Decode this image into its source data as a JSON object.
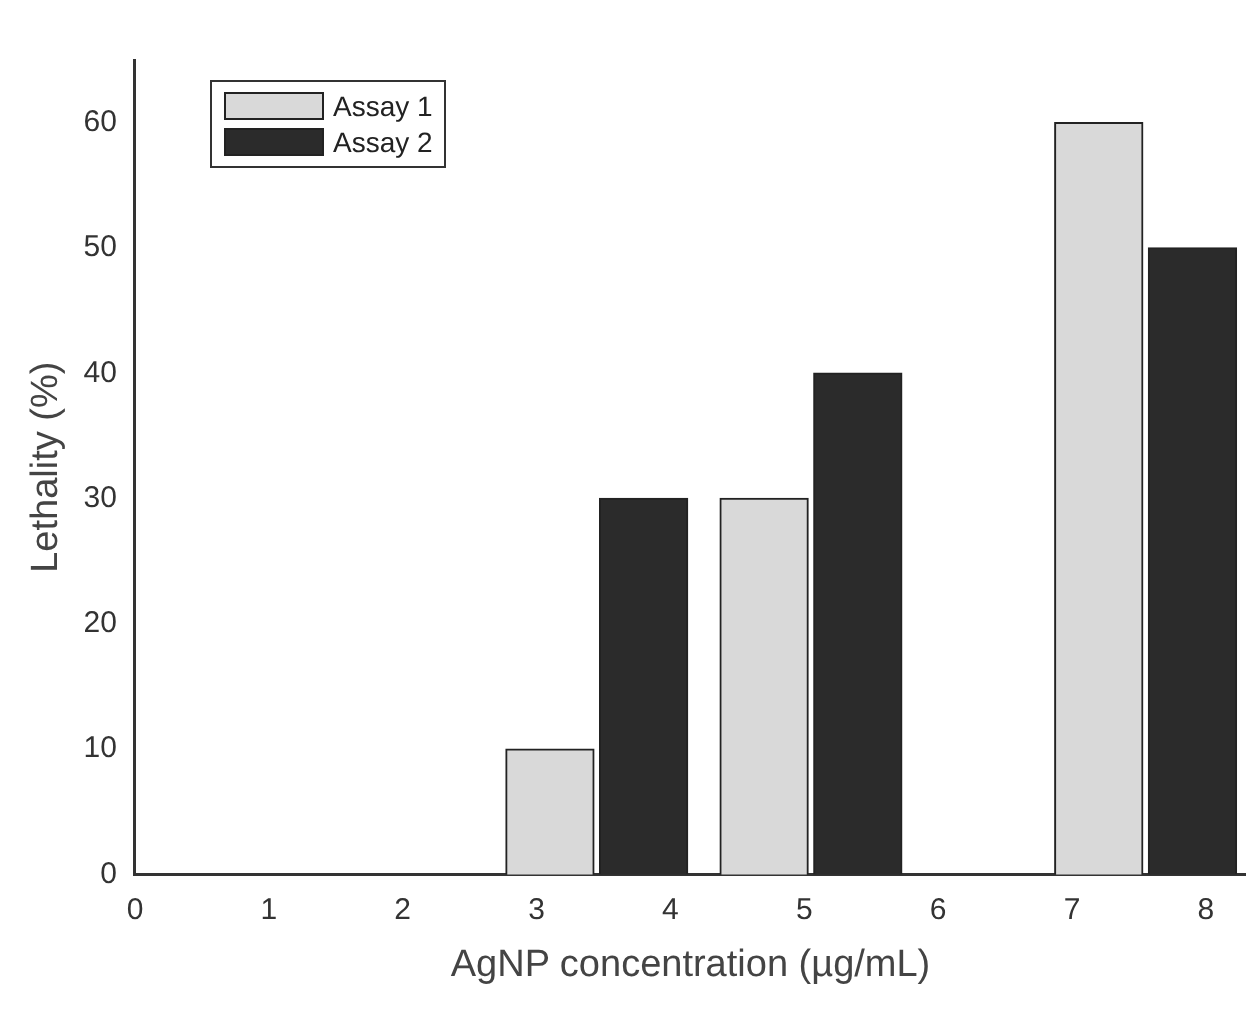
{
  "chart_data": {
    "type": "bar",
    "xlabel": "AgNP concentration (µg/mL)",
    "ylabel": "Lethality (%)",
    "series": [
      {
        "name": "Assay 1",
        "color": "#d9d9d9",
        "x": [
          3.1,
          4.7,
          7.2
        ],
        "values": [
          10,
          30,
          60
        ]
      },
      {
        "name": "Assay 2",
        "color": "#2b2b2b",
        "x": [
          3.8,
          5.4,
          7.9
        ],
        "values": [
          30,
          40,
          50
        ]
      }
    ],
    "xlim": [
      0,
      8.3
    ],
    "xticks": [
      0,
      1,
      2,
      3,
      4,
      5,
      6,
      7,
      8
    ],
    "ylim": [
      0,
      65
    ],
    "yticks": [
      0,
      10,
      20,
      30,
      40,
      50,
      60
    ],
    "grid": false,
    "legend": "top left"
  }
}
